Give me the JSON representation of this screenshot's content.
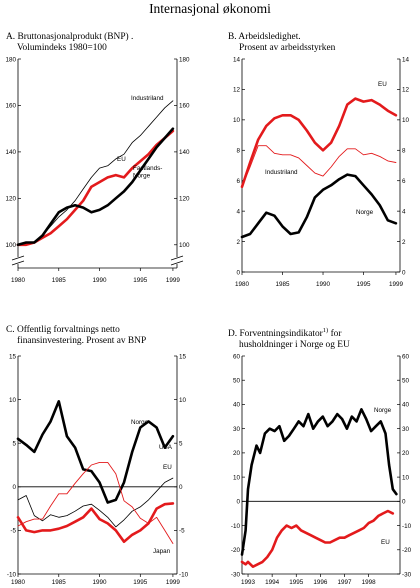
{
  "page": {
    "title": "Internasjonal økonomi"
  },
  "panels": {
    "a": {
      "line1": "A. Bruttonasjonalprodukt (BNP) .",
      "line2": "Volumindeks 1980=100"
    },
    "b": {
      "line1": "B. Arbeidsledighet.",
      "line2": "Prosent av arbeidsstyrken"
    },
    "c": {
      "line1": "C. Offentlig forvaltnings netto",
      "line2": "finansinvestering. Prosent av BNP"
    },
    "d": {
      "line1": "D. Forventningsindikator",
      "sup": "1)",
      "line1b": " for",
      "line2": "husholdninger i  Norge og EU"
    }
  },
  "colors": {
    "norway": "#000000",
    "eu": "#e31a1c",
    "thin": "#000000",
    "axis": "#000000"
  },
  "chart_data": [
    {
      "id": "a",
      "type": "line",
      "title": "Bruttonasjonalprodukt (BNP). Volumindeks 1980=100",
      "xlim": [
        1980,
        1999.5
      ],
      "xticks": [
        1980,
        1985,
        1990,
        1995,
        1999
      ],
      "ylim": [
        90,
        180
      ],
      "yticks": [
        100,
        120,
        140,
        160,
        180
      ],
      "axis_break": true,
      "series": [
        {
          "name": "Industriland",
          "style": "thin",
          "x": [
            1980,
            1981,
            1982,
            1983,
            1984,
            1985,
            1986,
            1987,
            1988,
            1989,
            1990,
            1991,
            1992,
            1993,
            1994,
            1995,
            1996,
            1997,
            1998,
            1999
          ],
          "y": [
            100,
            101,
            101,
            104,
            108,
            112,
            115,
            119,
            124,
            129,
            133,
            134,
            137,
            139,
            144,
            147,
            151,
            155,
            159,
            162
          ]
        },
        {
          "name": "EU",
          "style": "eu",
          "x": [
            1980,
            1981,
            1982,
            1983,
            1984,
            1985,
            1986,
            1987,
            1988,
            1989,
            1990,
            1991,
            1992,
            1993,
            1994,
            1995,
            1996,
            1997,
            1998,
            1999
          ],
          "y": [
            100,
            100,
            101,
            103,
            105,
            108,
            111,
            115,
            119,
            125,
            127,
            129,
            130,
            129,
            133,
            136,
            139,
            143,
            146,
            149
          ]
        },
        {
          "name": "Fastlands-Norge",
          "label_lines": [
            "Fastlands-",
            "Norge"
          ],
          "style": "norway",
          "x": [
            1980,
            1981,
            1982,
            1983,
            1984,
            1985,
            1986,
            1987,
            1988,
            1989,
            1990,
            1991,
            1992,
            1993,
            1994,
            1995,
            1996,
            1997,
            1998,
            1999
          ],
          "y": [
            100,
            101,
            101,
            104,
            109,
            114,
            116,
            117,
            116,
            114,
            115,
            117,
            120,
            123,
            127,
            132,
            137,
            142,
            146,
            150
          ]
        }
      ]
    },
    {
      "id": "b",
      "type": "line",
      "title": "Arbeidsledighet. Prosent av arbeidsstyrken",
      "xlim": [
        1980,
        1999.5
      ],
      "xticks": [
        1980,
        1985,
        1990,
        1995,
        1999
      ],
      "ylim": [
        0,
        14
      ],
      "yticks": [
        0,
        2,
        4,
        6,
        8,
        10,
        12,
        14
      ],
      "series": [
        {
          "name": "EU",
          "style": "eu",
          "x": [
            1980,
            1981,
            1982,
            1983,
            1984,
            1985,
            1986,
            1987,
            1988,
            1989,
            1990,
            1991,
            1992,
            1993,
            1994,
            1995,
            1996,
            1997,
            1998,
            1999
          ],
          "y": [
            5.6,
            7.2,
            8.7,
            9.6,
            10.1,
            10.3,
            10.3,
            10.0,
            9.3,
            8.5,
            8.0,
            8.5,
            9.6,
            11.0,
            11.4,
            11.2,
            11.3,
            11.0,
            10.6,
            10.3
          ]
        },
        {
          "name": "Industriland",
          "style": "red-thin",
          "x": [
            1980,
            1981,
            1982,
            1983,
            1984,
            1985,
            1986,
            1987,
            1988,
            1989,
            1990,
            1991,
            1992,
            1993,
            1994,
            1995,
            1996,
            1997,
            1998,
            1999
          ],
          "y": [
            5.6,
            6.9,
            8.3,
            8.3,
            7.8,
            7.7,
            7.7,
            7.5,
            7.0,
            6.5,
            6.3,
            6.9,
            7.6,
            8.1,
            8.1,
            7.7,
            7.8,
            7.6,
            7.3,
            7.2
          ]
        },
        {
          "name": "Norge",
          "style": "norway",
          "x": [
            1980,
            1981,
            1982,
            1983,
            1984,
            1985,
            1986,
            1987,
            1988,
            1989,
            1990,
            1991,
            1992,
            1993,
            1994,
            1995,
            1996,
            1997,
            1998,
            1999
          ],
          "y": [
            2.3,
            2.5,
            3.2,
            3.9,
            3.7,
            3.0,
            2.5,
            2.6,
            3.6,
            4.9,
            5.4,
            5.7,
            6.1,
            6.4,
            6.3,
            5.7,
            5.1,
            4.4,
            3.4,
            3.2
          ]
        }
      ]
    },
    {
      "id": "c",
      "type": "line",
      "title": "Offentlig forvaltnings netto finansinvestering. Prosent av BNP",
      "xlim": [
        1980,
        1999.5
      ],
      "xticks": [
        1980,
        1985,
        1990,
        1995,
        1999
      ],
      "ylim": [
        -10,
        15
      ],
      "yticks": [
        -10,
        -5,
        0,
        5,
        10,
        15
      ],
      "zero_line": true,
      "series": [
        {
          "name": "Norge",
          "style": "norway",
          "x": [
            1980,
            1981,
            1982,
            1983,
            1984,
            1985,
            1986,
            1987,
            1988,
            1989,
            1990,
            1991,
            1992,
            1993,
            1994,
            1995,
            1996,
            1997,
            1998,
            1999
          ],
          "y": [
            5.5,
            4.8,
            4.0,
            6.0,
            7.5,
            9.8,
            5.8,
            4.5,
            2.0,
            1.8,
            0.5,
            -1.8,
            -1.5,
            0.5,
            4.0,
            6.8,
            7.5,
            6.8,
            4.5,
            5.8
          ]
        },
        {
          "name": "USA",
          "style": "thin",
          "x": [
            1980,
            1981,
            1982,
            1983,
            1984,
            1985,
            1986,
            1987,
            1988,
            1989,
            1990,
            1991,
            1992,
            1993,
            1994,
            1995,
            1996,
            1997,
            1998,
            1999
          ],
          "y": [
            -1.5,
            -1.0,
            -3.3,
            -3.9,
            -3.2,
            -3.5,
            -3.3,
            -2.8,
            -2.2,
            -2.0,
            -2.7,
            -3.5,
            -4.6,
            -3.8,
            -2.8,
            -2.3,
            -1.5,
            -0.5,
            0.5,
            1.0
          ]
        },
        {
          "name": "EU",
          "style": "eu",
          "x": [
            1980,
            1981,
            1982,
            1983,
            1984,
            1985,
            1986,
            1987,
            1988,
            1989,
            1990,
            1991,
            1992,
            1993,
            1994,
            1995,
            1996,
            1997,
            1998,
            1999
          ],
          "y": [
            -3.5,
            -5.0,
            -5.2,
            -5.0,
            -5.0,
            -4.8,
            -4.5,
            -4.0,
            -3.5,
            -2.5,
            -3.7,
            -4.2,
            -5.0,
            -6.3,
            -5.5,
            -5.0,
            -4.2,
            -2.5,
            -2.0,
            -1.9
          ]
        },
        {
          "name": "Japan",
          "style": "red-thin",
          "x": [
            1980,
            1981,
            1982,
            1983,
            1984,
            1985,
            1986,
            1987,
            1988,
            1989,
            1990,
            1991,
            1992,
            1993,
            1994,
            1995,
            1996,
            1997,
            1998,
            1999
          ],
          "y": [
            -4.5,
            -4.0,
            -3.7,
            -3.7,
            -2.2,
            -0.8,
            -0.8,
            0.4,
            1.5,
            2.5,
            2.8,
            2.8,
            1.5,
            -1.6,
            -2.3,
            -3.6,
            -4.2,
            -3.5,
            -5.0,
            -6.5
          ]
        }
      ]
    },
    {
      "id": "d",
      "type": "line",
      "title": "Forventningsindikator for husholdninger i Norge og EU",
      "xlim": [
        1992.75,
        1999.3
      ],
      "xticks": [
        1993,
        1994,
        1995,
        1996,
        1997,
        1998
      ],
      "ylim": [
        -30,
        60
      ],
      "yticks": [
        -30,
        -20,
        -10,
        0,
        10,
        20,
        30,
        40,
        50,
        60
      ],
      "zero_line": true,
      "series": [
        {
          "name": "Norge",
          "style": "norway",
          "x": [
            1992.75,
            1992.9,
            1993.0,
            1993.15,
            1993.35,
            1993.5,
            1993.7,
            1993.9,
            1994.1,
            1994.3,
            1994.5,
            1994.7,
            1994.9,
            1995.1,
            1995.3,
            1995.5,
            1995.7,
            1995.9,
            1996.1,
            1996.3,
            1996.5,
            1996.7,
            1996.9,
            1997.1,
            1997.3,
            1997.5,
            1997.7,
            1997.9,
            1998.1,
            1998.3,
            1998.5,
            1998.7,
            1998.85,
            1999.0,
            1999.15
          ],
          "y": [
            -22,
            -12,
            5,
            15,
            23,
            20,
            28,
            30,
            29,
            31,
            25,
            27,
            30,
            33,
            31,
            36,
            30,
            33,
            35,
            31,
            33,
            36,
            34,
            30,
            35,
            33,
            38,
            34,
            29,
            31,
            33,
            28,
            15,
            5,
            3
          ]
        },
        {
          "name": "EU",
          "style": "eu",
          "x": [
            1992.75,
            1992.9,
            1993.0,
            1993.2,
            1993.4,
            1993.6,
            1993.8,
            1994.0,
            1994.2,
            1994.4,
            1994.6,
            1994.8,
            1995.0,
            1995.2,
            1995.4,
            1995.6,
            1995.8,
            1996.0,
            1996.2,
            1996.4,
            1996.6,
            1996.8,
            1997.0,
            1997.2,
            1997.4,
            1997.6,
            1997.8,
            1998.0,
            1998.2,
            1998.4,
            1998.6,
            1998.8,
            1999.0
          ],
          "y": [
            -25,
            -26,
            -25,
            -27,
            -26,
            -25,
            -23,
            -20,
            -15,
            -12,
            -10,
            -11,
            -10,
            -12,
            -13,
            -14,
            -15,
            -16,
            -17,
            -17,
            -16,
            -15,
            -15,
            -14,
            -13,
            -12,
            -11,
            -9,
            -8,
            -6,
            -5,
            -4,
            -5
          ]
        }
      ]
    }
  ]
}
